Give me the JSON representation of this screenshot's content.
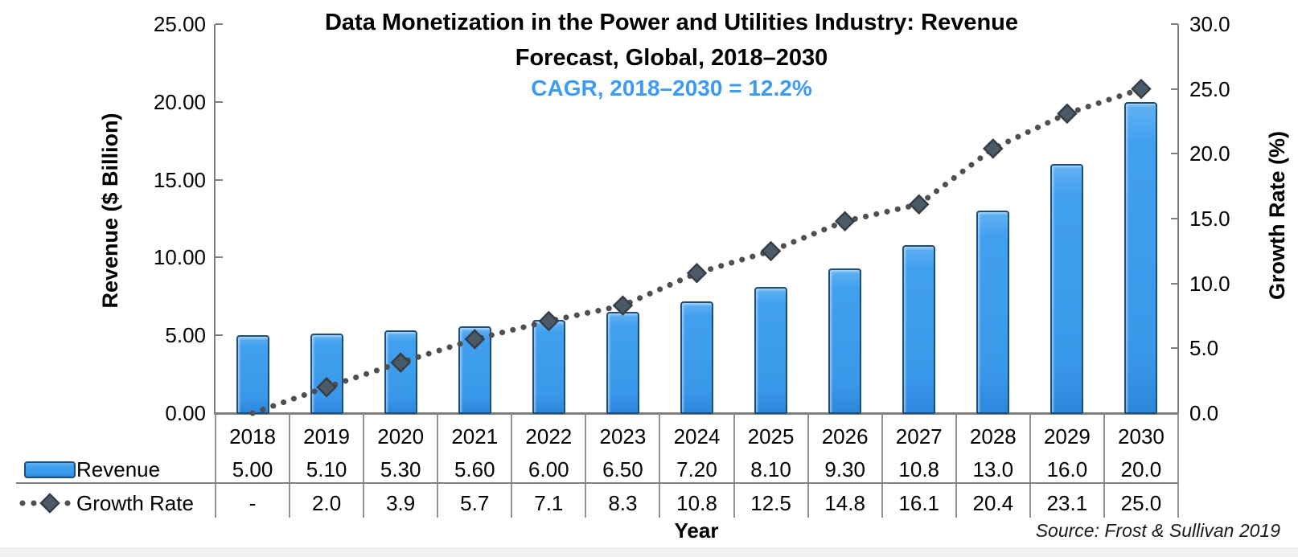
{
  "chart_data": {
    "type": "bar",
    "title_lines": [
      "Data Monetization in the Power and Utilities Industry: Revenue",
      "Forecast, Global, 2018–2030"
    ],
    "title": "Data Monetization in the Power and Utilities Industry: Revenue Forecast, Global, 2018–2030",
    "subtitle": "CAGR, 2018–2030 = 12.2%",
    "categories": [
      "2018",
      "2019",
      "2020",
      "2021",
      "2022",
      "2023",
      "2024",
      "2025",
      "2026",
      "2027",
      "2028",
      "2029",
      "2030"
    ],
    "series": [
      {
        "name": "Revenue",
        "type": "bar",
        "axis": "left",
        "values": [
          5.0,
          5.1,
          5.3,
          5.6,
          6.0,
          6.5,
          7.2,
          8.1,
          9.3,
          10.8,
          13.0,
          16.0,
          20.0
        ],
        "labels": [
          "5.00",
          "5.10",
          "5.30",
          "5.60",
          "6.00",
          "6.50",
          "7.20",
          "8.10",
          "9.30",
          "10.8",
          "13.0",
          "16.0",
          "20.0"
        ]
      },
      {
        "name": "Growth Rate",
        "type": "line",
        "axis": "right",
        "values": [
          null,
          2.0,
          3.9,
          5.7,
          7.1,
          8.3,
          10.8,
          12.5,
          14.8,
          16.1,
          20.4,
          23.1,
          25.0
        ],
        "labels": [
          "-",
          "2.0",
          "3.9",
          "5.7",
          "7.1",
          "8.3",
          "10.8",
          "12.5",
          "14.8",
          "16.1",
          "20.4",
          "23.1",
          "25.0"
        ]
      }
    ],
    "left_axis": {
      "title": "Revenue ($ Billion)",
      "range": [
        0,
        25
      ],
      "ticks": [
        {
          "label": "0.00",
          "value": 0
        },
        {
          "label": "5.00",
          "value": 5
        },
        {
          "label": "10.00",
          "value": 10
        },
        {
          "label": "15.00",
          "value": 15
        },
        {
          "label": "20.00",
          "value": 20
        },
        {
          "label": "25.00",
          "value": 25
        }
      ]
    },
    "right_axis": {
      "title": "Growth Rate (%)",
      "range": [
        0,
        30
      ],
      "ticks": [
        {
          "label": "0.0",
          "value": 0
        },
        {
          "label": "5.0",
          "value": 5
        },
        {
          "label": "10.0",
          "value": 10
        },
        {
          "label": "15.0",
          "value": 15
        },
        {
          "label": "20.0",
          "value": 20
        },
        {
          "label": "25.0",
          "value": 25
        },
        {
          "label": "30.0",
          "value": 30
        }
      ]
    },
    "x_axis": {
      "title": "Year"
    },
    "grid": false,
    "legend_position": "bottom-left-table",
    "source": "Source: Frost & Sullivan 2019"
  },
  "colors": {
    "bar_fill": "#3e9dee",
    "bar_border": "#1c4e79",
    "line_dots": "#4f4f4f",
    "marker_fill": "#4c5a68",
    "marker_border": "#353e48",
    "subtitle_blue": "#3e9bf4",
    "axis_gray": "#7f7f7f"
  }
}
